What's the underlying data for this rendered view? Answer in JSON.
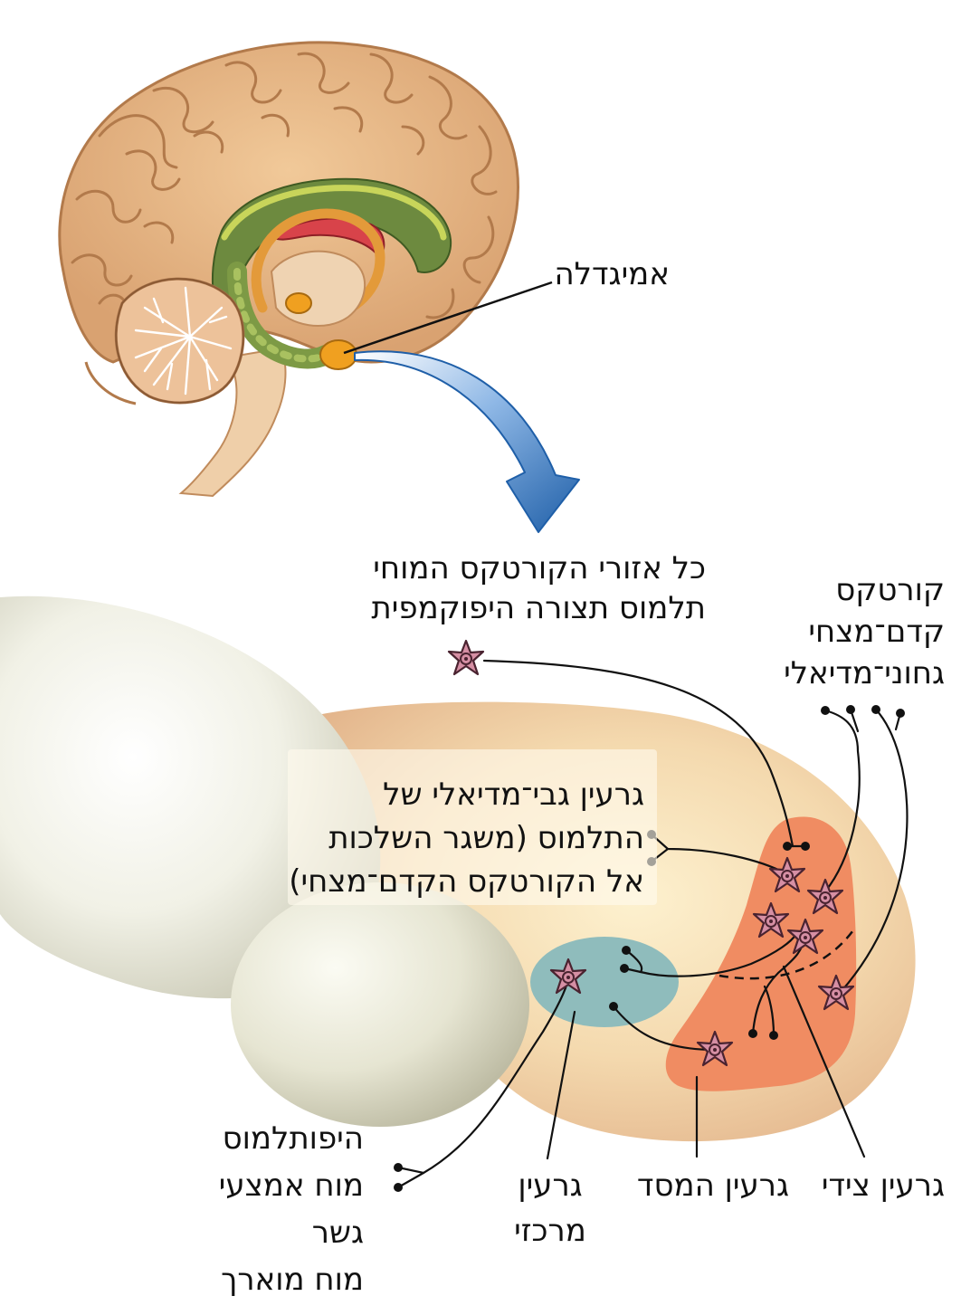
{
  "labels": {
    "amygdala": "אמיגדלה",
    "all_cortex_1": "כל אזורי הקורטקס המוחי",
    "all_cortex_2": "תלמוס תצורה היפוקמפית",
    "pfc_1": "קורטקס",
    "pfc_2": "קדם־מצחי",
    "pfc_3": "גחוני־מדיאלי",
    "md_thal_1": "גרעין גבי־מדיאלי של",
    "md_thal_2": "התלמוס (משגר השלכות",
    "md_thal_3": "אל הקורטקס הקדם־מצחי)",
    "outputs_1": "היפותלמוס",
    "outputs_2": "מוח אמצעי",
    "outputs_3": "גשר",
    "outputs_4": "מוח מוארך",
    "central_1": "גרעין",
    "central_2": "מרכזי",
    "basal": "גרעין המסד",
    "lateral": "גרעין צידי"
  },
  "colors": {
    "brain_tan": "#e7b98a",
    "brain_tan_dark": "#c98f5c",
    "limbic_green": "#5f7d3a",
    "limbic_yellow": "#c8d55a",
    "fornix_orange": "#e39a3a",
    "amygdala_orange": "#f0a020",
    "cerebellum": "#e9b48a",
    "arrow_blue": "#2f7fc8",
    "nucleus_orange": "#f08c62",
    "central_teal": "#8fbcbc",
    "neuron_fill": "#d68fa4",
    "neuron_stroke": "#4a2330"
  }
}
